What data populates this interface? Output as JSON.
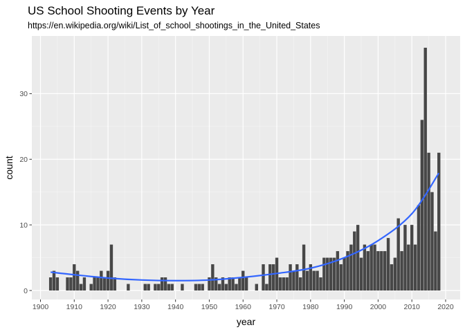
{
  "chart_data": {
    "type": "bar",
    "title": "US School Shooting Events by Year",
    "subtitle": "https://en.wikipedia.org/wiki/List_of_school_shootings_in_the_United_States",
    "xlabel": "year",
    "ylabel": "count",
    "xlim": [
      1900,
      2020
    ],
    "ylim": [
      0,
      37
    ],
    "x_ticks": [
      1900,
      1910,
      1920,
      1930,
      1940,
      1950,
      1960,
      1970,
      1980,
      1990,
      2000,
      2010,
      2020
    ],
    "y_ticks": [
      0,
      10,
      20,
      30
    ],
    "grid": true,
    "bar_color": "#474747",
    "panel_background": "#ebebeb",
    "smooth_color": "#3366ff",
    "x": [
      1903,
      1904,
      1905,
      1908,
      1909,
      1910,
      1911,
      1912,
      1913,
      1915,
      1916,
      1917,
      1918,
      1919,
      1920,
      1921,
      1922,
      1926,
      1931,
      1932,
      1934,
      1935,
      1936,
      1937,
      1938,
      1939,
      1942,
      1946,
      1947,
      1948,
      1950,
      1951,
      1952,
      1953,
      1954,
      1955,
      1956,
      1957,
      1958,
      1959,
      1960,
      1961,
      1964,
      1966,
      1967,
      1968,
      1969,
      1970,
      1971,
      1972,
      1973,
      1974,
      1975,
      1976,
      1977,
      1978,
      1979,
      1980,
      1981,
      1982,
      1983,
      1984,
      1985,
      1986,
      1987,
      1988,
      1989,
      1990,
      1991,
      1992,
      1993,
      1994,
      1995,
      1996,
      1997,
      1998,
      1999,
      2000,
      2001,
      2002,
      2003,
      2004,
      2005,
      2006,
      2007,
      2008,
      2009,
      2010,
      2011,
      2012,
      2013,
      2014,
      2015,
      2016,
      2017,
      2018
    ],
    "values": [
      2,
      3,
      2,
      2,
      2,
      4,
      3,
      1,
      2,
      1,
      2,
      2,
      3,
      2,
      3,
      7,
      2,
      1,
      1,
      1,
      1,
      1,
      2,
      2,
      1,
      1,
      1,
      1,
      1,
      1,
      2,
      4,
      2,
      1,
      2,
      1,
      2,
      2,
      1,
      2,
      3,
      2,
      1,
      4,
      1,
      4,
      4,
      5,
      2,
      2,
      2,
      4,
      3,
      4,
      2,
      7,
      3,
      4,
      3,
      3,
      2,
      5,
      5,
      5,
      5,
      6,
      4,
      5,
      6,
      7,
      9,
      10,
      5,
      7,
      6,
      7,
      7,
      6,
      6,
      6,
      8,
      4,
      5,
      11,
      6,
      10,
      7,
      10,
      7,
      13,
      26,
      37,
      21,
      15,
      9,
      21
    ],
    "smooth": {
      "x": [
        1903,
        1910,
        1920,
        1930,
        1940,
        1950,
        1960,
        1970,
        1980,
        1990,
        2000,
        2010,
        2018
      ],
      "y": [
        2.8,
        2.4,
        1.9,
        1.6,
        1.5,
        1.6,
        2.0,
        2.6,
        3.4,
        5.0,
        7.6,
        11.7,
        17.9
      ]
    }
  }
}
